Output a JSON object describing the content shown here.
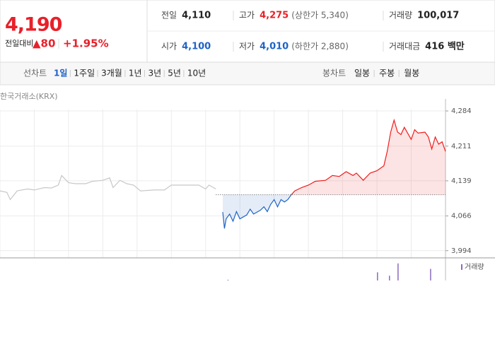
{
  "quote": {
    "price": "4,190",
    "change_label": "전일대비",
    "change": "▲80",
    "change_rate": "+1.95%"
  },
  "info": [
    {
      "label": "전일",
      "value": "4,110"
    },
    {
      "label": "고가",
      "value": "4,275",
      "note": "(상한가 5,340)"
    },
    {
      "label": "거래량",
      "value": "100,017"
    },
    {
      "label": "시가",
      "value": "4,100"
    },
    {
      "label": "저가",
      "value": "4,010",
      "note": "(하한가 2,880)"
    },
    {
      "label": "거래대금",
      "value": "416 백만"
    }
  ],
  "tabs": {
    "line_label": "선차트",
    "line": [
      "1일",
      "1주일",
      "3개월",
      "1년",
      "3년",
      "5년",
      "10년"
    ],
    "selected": 0,
    "candle_label": "봉차트",
    "candle": [
      "일봉",
      "주봉",
      "월봉"
    ]
  },
  "chart_data": {
    "type": "line",
    "source": "한국거래소(KRX)",
    "xlim": [
      0,
      130
    ],
    "xticks": [
      0,
      10,
      20,
      30,
      40,
      50,
      60,
      70,
      80,
      90,
      100,
      110,
      120,
      130
    ],
    "ylim": [
      3979,
      4309
    ],
    "yticks": [
      {
        "value": 3994,
        "label": "3,994"
      },
      {
        "value": 4066,
        "label": "4,066"
      },
      {
        "value": 4139,
        "label": "4,139"
      },
      {
        "value": 4211,
        "label": "4,211"
      },
      {
        "value": 4284,
        "label": "4,284"
      }
    ],
    "grid": true,
    "baseline": 4110,
    "up_color": "#f01c1c",
    "down_color": "#1f63c6",
    "series": [
      {
        "color": "#c8c8c8",
        "x": [
          0,
          2,
          3,
          5,
          8,
          10,
          13,
          15,
          17,
          18,
          20,
          22,
          25,
          27,
          30,
          32,
          33,
          35,
          37,
          39,
          41,
          45,
          48,
          50,
          55,
          58,
          60,
          61,
          63
        ],
        "values": [
          4118,
          4115,
          4100,
          4118,
          4122,
          4120,
          4125,
          4124,
          4130,
          4150,
          4135,
          4133,
          4133,
          4138,
          4140,
          4145,
          4125,
          4140,
          4133,
          4130,
          4118,
          4120,
          4120,
          4130,
          4130,
          4130,
          4122,
          4130,
          4122
        ]
      },
      {
        "split": true,
        "x": [
          65,
          65.5,
          66,
          67,
          68,
          69,
          70,
          72,
          73,
          74,
          76,
          77,
          78,
          79,
          80,
          81,
          82,
          83,
          84,
          85,
          86,
          88,
          90,
          92,
          95,
          97,
          99,
          101,
          103,
          104,
          106,
          108,
          110,
          112,
          113,
          114,
          115,
          116,
          117,
          118,
          120,
          121,
          122,
          124,
          125,
          126,
          127,
          128,
          129,
          130
        ],
        "values": [
          4074,
          4040,
          4060,
          4070,
          4055,
          4075,
          4060,
          4068,
          4080,
          4070,
          4078,
          4085,
          4075,
          4090,
          4100,
          4085,
          4100,
          4095,
          4100,
          4110,
          4118,
          4125,
          4130,
          4138,
          4140,
          4150,
          4148,
          4158,
          4150,
          4155,
          4140,
          4155,
          4160,
          4170,
          4200,
          4240,
          4265,
          4240,
          4235,
          4250,
          4225,
          4245,
          4238,
          4240,
          4230,
          4205,
          4230,
          4215,
          4220,
          4200
        ]
      }
    ],
    "volume": {
      "label": "거래량",
      "color": "#8a6bbf",
      "ylim": [
        0,
        30
      ],
      "x": [
        66.5,
        110.1,
        113.6,
        116.1,
        125.6
      ],
      "values": [
        1,
        12,
        7,
        25,
        17
      ]
    }
  }
}
